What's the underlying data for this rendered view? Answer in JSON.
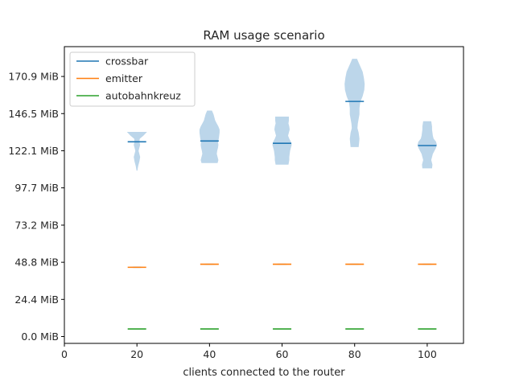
{
  "chart_data": {
    "type": "violin",
    "title": "RAM usage scenario",
    "xlabel": "clients connected to the router",
    "ylabel": "",
    "x_ticks": [
      0,
      20,
      40,
      60,
      80,
      100
    ],
    "x_tick_labels": [
      "0",
      "20",
      "40",
      "60",
      "80",
      "100"
    ],
    "xlim": [
      0,
      110
    ],
    "y_ticks": [
      0.0,
      24.4,
      48.8,
      73.2,
      97.7,
      122.1,
      146.5,
      170.9
    ],
    "y_tick_labels": [
      "0.0 MiB",
      "24.4 MiB",
      "48.8 MiB",
      "73.2 MiB",
      "97.7 MiB",
      "122.1 MiB",
      "146.5 MiB",
      "170.9 MiB"
    ],
    "ylim": [
      -4.5,
      190.5
    ],
    "grid": false,
    "legend_position": "top-left",
    "colors": {
      "crossbar": "#1f77b4",
      "emitter": "#ff7f0e",
      "autobahnkreuz": "#2ca02c",
      "violin_fill": "#bcd6ea"
    },
    "series": [
      {
        "name": "crossbar",
        "points": [
          {
            "x": 20,
            "mean": 128.0,
            "min": 109.0,
            "max": 134.5,
            "profile": [
              [
                109.0,
                0.5
              ],
              [
                112.0,
                1.5
              ],
              [
                115.0,
                3.0
              ],
              [
                118.0,
                4.0
              ],
              [
                120.0,
                3.0
              ],
              [
                122.0,
                2.0
              ],
              [
                124.0,
                3.0
              ],
              [
                126.0,
                4.0
              ],
              [
                128.0,
                3.0
              ],
              [
                130.0,
                3.5
              ],
              [
                132.0,
                8.0
              ],
              [
                134.5,
                12.5
              ]
            ]
          },
          {
            "x": 40,
            "mean": 128.5,
            "min": 114.0,
            "max": 148.5,
            "profile": [
              [
                114.0,
                10.0
              ],
              [
                116.0,
                11.0
              ],
              [
                118.0,
                10.0
              ],
              [
                120.0,
                9.0
              ],
              [
                122.0,
                9.5
              ],
              [
                124.0,
                10.5
              ],
              [
                126.0,
                11.0
              ],
              [
                128.0,
                10.5
              ],
              [
                130.0,
                11.5
              ],
              [
                132.0,
                12.0
              ],
              [
                134.0,
                12.5
              ],
              [
                136.0,
                12.5
              ],
              [
                138.0,
                11.0
              ],
              [
                140.0,
                9.0
              ],
              [
                142.0,
                7.0
              ],
              [
                144.0,
                6.0
              ],
              [
                146.0,
                5.0
              ],
              [
                148.5,
                3.0
              ]
            ]
          },
          {
            "x": 60,
            "mean": 127.0,
            "min": 113.0,
            "max": 144.5,
            "profile": [
              [
                113.0,
                8.0
              ],
              [
                116.0,
                9.0
              ],
              [
                118.0,
                9.0
              ],
              [
                120.0,
                9.5
              ],
              [
                122.0,
                10.0
              ],
              [
                124.0,
                11.0
              ],
              [
                126.0,
                12.0
              ],
              [
                128.0,
                11.0
              ],
              [
                130.0,
                9.0
              ],
              [
                132.0,
                7.5
              ],
              [
                134.0,
                8.5
              ],
              [
                136.0,
                9.5
              ],
              [
                138.0,
                9.0
              ],
              [
                140.0,
                8.0
              ],
              [
                142.0,
                8.5
              ],
              [
                144.5,
                8.5
              ]
            ]
          },
          {
            "x": 80,
            "mean": 154.5,
            "min": 124.5,
            "max": 182.5,
            "profile": [
              [
                124.5,
                5.0
              ],
              [
                127.0,
                5.5
              ],
              [
                130.0,
                6.0
              ],
              [
                134.0,
                5.0
              ],
              [
                137.0,
                3.5
              ],
              [
                140.0,
                4.0
              ],
              [
                143.0,
                5.0
              ],
              [
                146.0,
                6.0
              ],
              [
                150.0,
                6.0
              ],
              [
                154.0,
                7.0
              ],
              [
                158.0,
                10.0
              ],
              [
                162.0,
                12.0
              ],
              [
                166.0,
                12.5
              ],
              [
                170.0,
                11.5
              ],
              [
                174.0,
                10.0
              ],
              [
                177.0,
                7.5
              ],
              [
                180.0,
                5.0
              ],
              [
                182.5,
                3.0
              ]
            ]
          },
          {
            "x": 100,
            "mean": 125.5,
            "min": 110.5,
            "max": 141.5,
            "profile": [
              [
                110.5,
                6.0
              ],
              [
                113.0,
                6.5
              ],
              [
                116.0,
                5.0
              ],
              [
                118.0,
                6.0
              ],
              [
                120.0,
                7.0
              ],
              [
                122.0,
                9.0
              ],
              [
                124.0,
                11.0
              ],
              [
                126.0,
                12.0
              ],
              [
                128.0,
                11.0
              ],
              [
                130.0,
                8.0
              ],
              [
                132.0,
                7.0
              ],
              [
                134.0,
                6.5
              ],
              [
                136.0,
                6.0
              ],
              [
                138.0,
                6.0
              ],
              [
                141.5,
                5.0
              ]
            ]
          }
        ]
      },
      {
        "name": "emitter",
        "points": [
          {
            "x": 20,
            "mean": 45.5,
            "min": 45.0,
            "max": 46.0,
            "profile": [
              [
                45.0,
                4.0
              ],
              [
                45.5,
                12.0
              ],
              [
                46.0,
                4.0
              ]
            ]
          },
          {
            "x": 40,
            "mean": 47.5,
            "min": 47.0,
            "max": 48.0,
            "profile": [
              [
                47.0,
                4.0
              ],
              [
                47.5,
                12.0
              ],
              [
                48.0,
                4.0
              ]
            ]
          },
          {
            "x": 60,
            "mean": 47.5,
            "min": 47.0,
            "max": 48.0,
            "profile": [
              [
                47.0,
                4.0
              ],
              [
                47.5,
                12.0
              ],
              [
                48.0,
                4.0
              ]
            ]
          },
          {
            "x": 80,
            "mean": 47.5,
            "min": 47.0,
            "max": 48.0,
            "profile": [
              [
                47.0,
                4.0
              ],
              [
                47.5,
                12.0
              ],
              [
                48.0,
                4.0
              ]
            ]
          },
          {
            "x": 100,
            "mean": 47.5,
            "min": 47.0,
            "max": 48.0,
            "profile": [
              [
                47.0,
                4.0
              ],
              [
                47.5,
                12.0
              ],
              [
                48.0,
                4.0
              ]
            ]
          }
        ]
      },
      {
        "name": "autobahnkreuz",
        "points": [
          {
            "x": 20,
            "mean": 5.0,
            "min": 5.0,
            "max": 5.0,
            "profile": []
          },
          {
            "x": 40,
            "mean": 5.0,
            "min": 5.0,
            "max": 5.0,
            "profile": []
          },
          {
            "x": 60,
            "mean": 5.0,
            "min": 5.0,
            "max": 5.0,
            "profile": []
          },
          {
            "x": 80,
            "mean": 5.0,
            "min": 5.0,
            "max": 5.0,
            "profile": []
          },
          {
            "x": 100,
            "mean": 5.0,
            "min": 5.0,
            "max": 5.0,
            "profile": []
          }
        ]
      }
    ]
  }
}
